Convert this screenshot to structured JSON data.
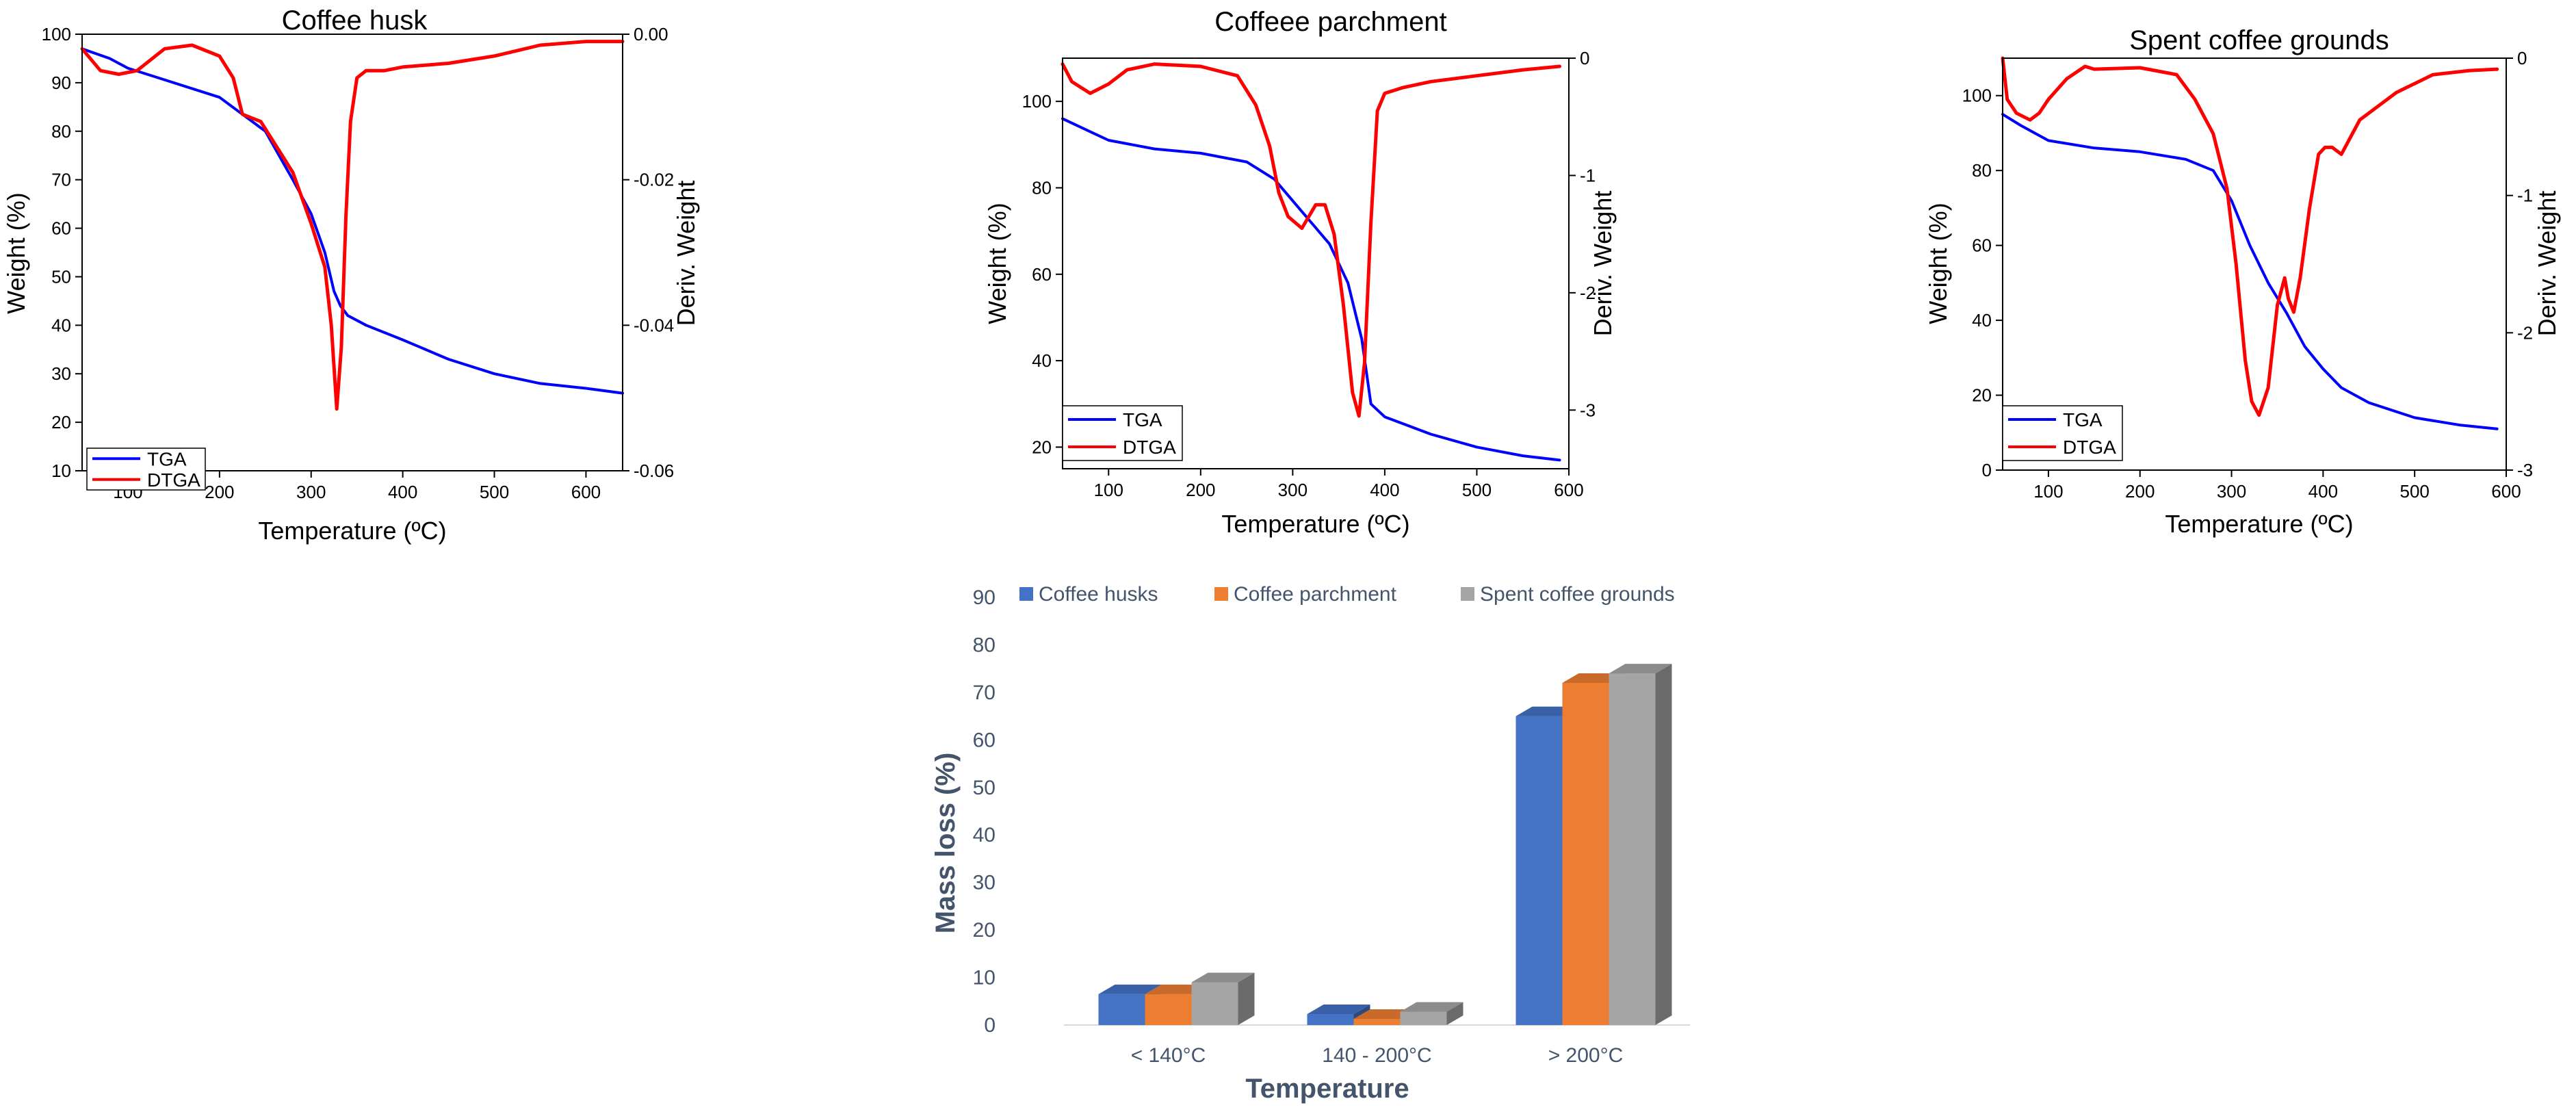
{
  "chart_data": [
    {
      "type": "line",
      "title": "Coffee husk",
      "xlabel": "Temperature (ºC)",
      "ylabel": "Weight (%)",
      "ylabel_right": "Deriv. Weight",
      "xlim": [
        50,
        640
      ],
      "ylim": [
        10,
        100
      ],
      "ylim_right": [
        -0.06,
        0.0
      ],
      "xticks": [
        "100",
        "200",
        "300",
        "400",
        "500",
        "600"
      ],
      "yticks": [
        "10",
        "20",
        "30",
        "40",
        "50",
        "60",
        "70",
        "80",
        "90",
        "100"
      ],
      "yticks_right": [
        "-0.06",
        "-0.04",
        "-0.02",
        "0.00"
      ],
      "legend": [
        "TGA",
        "DTGA"
      ],
      "legend_position": "bottom-left",
      "series": [
        {
          "name": "TGA",
          "color": "#0000ff",
          "axis": "left",
          "x": [
            50,
            80,
            100,
            150,
            200,
            250,
            280,
            300,
            315,
            325,
            332,
            340,
            360,
            400,
            450,
            500,
            550,
            600,
            640
          ],
          "y": [
            97,
            95,
            93,
            90,
            87,
            80,
            70,
            63,
            55,
            47,
            44,
            42,
            40,
            37,
            33,
            30,
            28,
            27,
            26
          ]
        },
        {
          "name": "DTGA",
          "color": "#ff0000",
          "axis": "right",
          "x": [
            50,
            70,
            90,
            110,
            140,
            170,
            200,
            215,
            225,
            235,
            245,
            260,
            280,
            300,
            315,
            322,
            328,
            333,
            338,
            343,
            350,
            360,
            380,
            400,
            450,
            500,
            550,
            600,
            640
          ],
          "y": [
            -0.002,
            -0.005,
            -0.0055,
            -0.005,
            -0.002,
            -0.0015,
            -0.003,
            -0.006,
            -0.011,
            -0.0115,
            -0.012,
            -0.015,
            -0.019,
            -0.026,
            -0.032,
            -0.04,
            -0.0515,
            -0.043,
            -0.025,
            -0.012,
            -0.006,
            -0.005,
            -0.005,
            -0.0045,
            -0.004,
            -0.003,
            -0.0015,
            -0.001,
            -0.001
          ]
        }
      ]
    },
    {
      "type": "line",
      "title": "Coffeee parchment",
      "xlabel": "Temperature (ºC)",
      "ylabel": "Weight (%)",
      "ylabel_right": "Deriv. Weight",
      "xlim": [
        50,
        600
      ],
      "ylim": [
        15,
        110
      ],
      "ylim_right": [
        -3.5,
        0
      ],
      "xticks": [
        "100",
        "200",
        "300",
        "400",
        "500",
        "600"
      ],
      "yticks": [
        "20",
        "40",
        "60",
        "80",
        "100"
      ],
      "yticks_right": [
        "-3",
        "-2",
        "-1",
        "0"
      ],
      "legend": [
        "TGA",
        "DTGA"
      ],
      "legend_position": "bottom-left",
      "series": [
        {
          "name": "TGA",
          "color": "#0000ff",
          "axis": "left",
          "x": [
            50,
            80,
            100,
            150,
            200,
            250,
            280,
            300,
            320,
            340,
            360,
            375,
            385,
            400,
            450,
            500,
            550,
            590
          ],
          "y": [
            96,
            93,
            91,
            89,
            88,
            86,
            82,
            77,
            72,
            67,
            58,
            45,
            30,
            27,
            23,
            20,
            18,
            17
          ]
        },
        {
          "name": "DTGA",
          "color": "#ff0000",
          "axis": "right",
          "x": [
            50,
            60,
            80,
            100,
            120,
            150,
            200,
            240,
            260,
            275,
            285,
            295,
            310,
            325,
            335,
            345,
            355,
            365,
            372,
            378,
            385,
            392,
            400,
            420,
            450,
            500,
            550,
            590
          ],
          "y": [
            -0.05,
            -0.2,
            -0.3,
            -0.22,
            -0.1,
            -0.05,
            -0.07,
            -0.15,
            -0.4,
            -0.75,
            -1.15,
            -1.35,
            -1.45,
            -1.25,
            -1.25,
            -1.5,
            -2.1,
            -2.85,
            -3.05,
            -2.6,
            -1.4,
            -0.45,
            -0.3,
            -0.25,
            -0.2,
            -0.15,
            -0.1,
            -0.07
          ]
        }
      ]
    },
    {
      "type": "line",
      "title": "Spent coffee grounds",
      "xlabel": "Temperature (ºC)",
      "ylabel": "Weight (%)",
      "ylabel_right": "Deriv. Weight",
      "xlim": [
        50,
        600
      ],
      "ylim": [
        0,
        110
      ],
      "ylim_right": [
        -3,
        0
      ],
      "xticks": [
        "100",
        "200",
        "300",
        "400",
        "500",
        "600"
      ],
      "yticks": [
        "0",
        "20",
        "40",
        "60",
        "80",
        "100"
      ],
      "yticks_right": [
        "-3",
        "-2",
        "-1",
        "0"
      ],
      "legend": [
        "TGA",
        "DTGA"
      ],
      "legend_position": "bottom-left",
      "series": [
        {
          "name": "TGA",
          "color": "#0000ff",
          "axis": "left",
          "x": [
            50,
            70,
            100,
            150,
            200,
            250,
            280,
            300,
            320,
            340,
            360,
            380,
            400,
            420,
            450,
            500,
            550,
            590
          ],
          "y": [
            95,
            92,
            88,
            86,
            85,
            83,
            80,
            72,
            60,
            50,
            42,
            33,
            27,
            22,
            18,
            14,
            12,
            11
          ]
        },
        {
          "name": "DTGA",
          "color": "#ff0000",
          "axis": "right",
          "x": [
            50,
            55,
            65,
            80,
            90,
            100,
            120,
            140,
            150,
            200,
            240,
            260,
            280,
            295,
            305,
            315,
            322,
            330,
            340,
            350,
            358,
            362,
            368,
            375,
            385,
            395,
            402,
            410,
            420,
            440,
            480,
            520,
            560,
            590
          ],
          "y": [
            0,
            -0.3,
            -0.4,
            -0.45,
            -0.4,
            -0.3,
            -0.15,
            -0.06,
            -0.08,
            -0.07,
            -0.12,
            -0.3,
            -0.55,
            -0.95,
            -1.5,
            -2.2,
            -2.5,
            -2.6,
            -2.4,
            -1.8,
            -1.6,
            -1.75,
            -1.85,
            -1.6,
            -1.1,
            -0.7,
            -0.65,
            -0.65,
            -0.7,
            -0.45,
            -0.25,
            -0.12,
            -0.09,
            -0.08
          ]
        }
      ]
    },
    {
      "type": "bar",
      "title": "",
      "xlabel": "Temperature",
      "ylabel": "Mass loss (%)",
      "ylim": [
        0,
        90
      ],
      "yticks": [
        "0",
        "10",
        "20",
        "30",
        "40",
        "50",
        "60",
        "70",
        "80",
        "90"
      ],
      "categories": [
        "< 140°C",
        "140 - 200°C",
        "> 200°C"
      ],
      "legend_position": "top",
      "series": [
        {
          "name": "Coffee husks",
          "color": "#4472c4",
          "values": [
            6.5,
            2.3,
            65
          ]
        },
        {
          "name": "Coffee parchment",
          "color": "#ed7d31",
          "values": [
            6.5,
            1.3,
            72
          ]
        },
        {
          "name": "Spent coffee grounds",
          "color": "#a5a5a5",
          "values": [
            9,
            2.8,
            74
          ]
        }
      ]
    }
  ]
}
